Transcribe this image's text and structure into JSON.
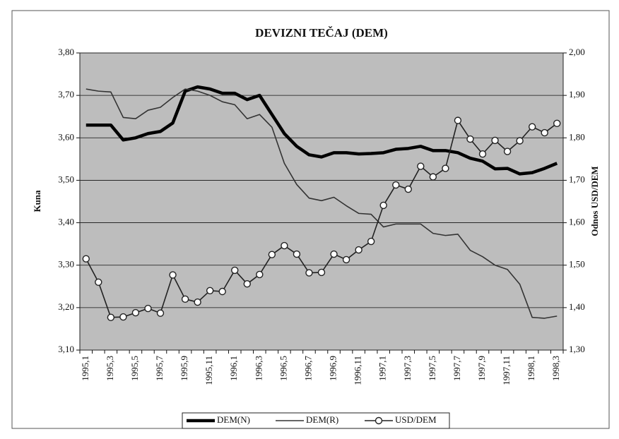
{
  "chart_data": {
    "type": "line",
    "title": "DEVIZNI TEČAJ (DEM)",
    "y_label": "Kuna",
    "y2_label": "Odnos USD/DEM",
    "categories": [
      "1995,1",
      null,
      "1995,3",
      null,
      "1995,5",
      null,
      "1995,7",
      null,
      "1995,9",
      null,
      "1995,11",
      null,
      "1996,1",
      null,
      "1996,3",
      null,
      "1996,5",
      null,
      "1996,7",
      null,
      "1996,9",
      null,
      "1996,11",
      null,
      "1997,1",
      null,
      "1997,3",
      null,
      "1997,5",
      null,
      "1997,7",
      null,
      "1997,9",
      null,
      "1997,11",
      null,
      "1998,1",
      null,
      "1998,3"
    ],
    "series": [
      {
        "name": "DEM(N)",
        "color": "#000000",
        "line": "bold",
        "values": [
          3.63,
          3.63,
          3.63,
          3.595,
          3.6,
          3.61,
          3.615,
          3.635,
          3.71,
          3.72,
          3.715,
          3.705,
          3.705,
          3.69,
          3.7,
          3.655,
          3.61,
          3.58,
          3.56,
          3.555,
          3.565,
          3.565,
          3.562,
          3.563,
          3.565,
          3.573,
          3.575,
          3.58,
          3.57,
          3.57,
          3.565,
          3.552,
          3.545,
          3.527,
          3.528,
          3.515,
          3.518,
          3.528,
          3.54
        ]
      },
      {
        "name": "DEM(R)",
        "color": "#333333",
        "line": "thin",
        "values": [
          3.715,
          3.71,
          3.708,
          3.648,
          3.645,
          3.665,
          3.672,
          3.695,
          3.715,
          3.71,
          3.7,
          3.685,
          3.678,
          3.645,
          3.655,
          3.625,
          3.54,
          3.49,
          3.458,
          3.452,
          3.46,
          3.44,
          3.422,
          3.42,
          3.39,
          3.397,
          3.397,
          3.397,
          3.375,
          3.37,
          3.373,
          3.335,
          3.32,
          3.3,
          3.29,
          3.255,
          3.177,
          3.175,
          3.18
        ]
      },
      {
        "name": "USD/DEM",
        "color": "#222222",
        "line": "thin",
        "marker": "circle",
        "axis": "y2",
        "values": [
          1.515,
          1.46,
          1.377,
          1.378,
          1.388,
          1.398,
          1.387,
          1.477,
          1.42,
          1.413,
          1.44,
          1.438,
          1.488,
          1.456,
          1.478,
          1.525,
          1.546,
          1.526,
          1.482,
          1.483,
          1.526,
          1.513,
          1.536,
          1.556,
          1.641,
          1.689,
          1.679,
          1.733,
          1.708,
          1.728,
          1.841,
          1.797,
          1.762,
          1.794,
          1.768,
          1.793,
          1.826,
          1.812,
          1.834
        ]
      }
    ],
    "ylim": [
      3.1,
      3.8
    ],
    "yticks": [
      {
        "value": 3.1,
        "label": "3,10"
      },
      {
        "value": 3.2,
        "label": "3,20"
      },
      {
        "value": 3.3,
        "label": "3,30"
      },
      {
        "value": 3.4,
        "label": "3,40"
      },
      {
        "value": 3.5,
        "label": "3,50"
      },
      {
        "value": 3.6,
        "label": "3,60"
      },
      {
        "value": 3.7,
        "label": "3,70"
      },
      {
        "value": 3.8,
        "label": "3,80"
      }
    ],
    "y2lim": [
      1.3,
      2.0
    ],
    "y2ticks": [
      {
        "value": 1.3,
        "label": "1,30"
      },
      {
        "value": 1.4,
        "label": "1,40"
      },
      {
        "value": 1.5,
        "label": "1,50"
      },
      {
        "value": 1.6,
        "label": "1,60"
      },
      {
        "value": 1.7,
        "label": "1,70"
      },
      {
        "value": 1.8,
        "label": "1,80"
      },
      {
        "value": 1.9,
        "label": "1,90"
      },
      {
        "value": 2.0,
        "label": "2,00"
      }
    ],
    "grid": true,
    "legend": "bottom"
  }
}
